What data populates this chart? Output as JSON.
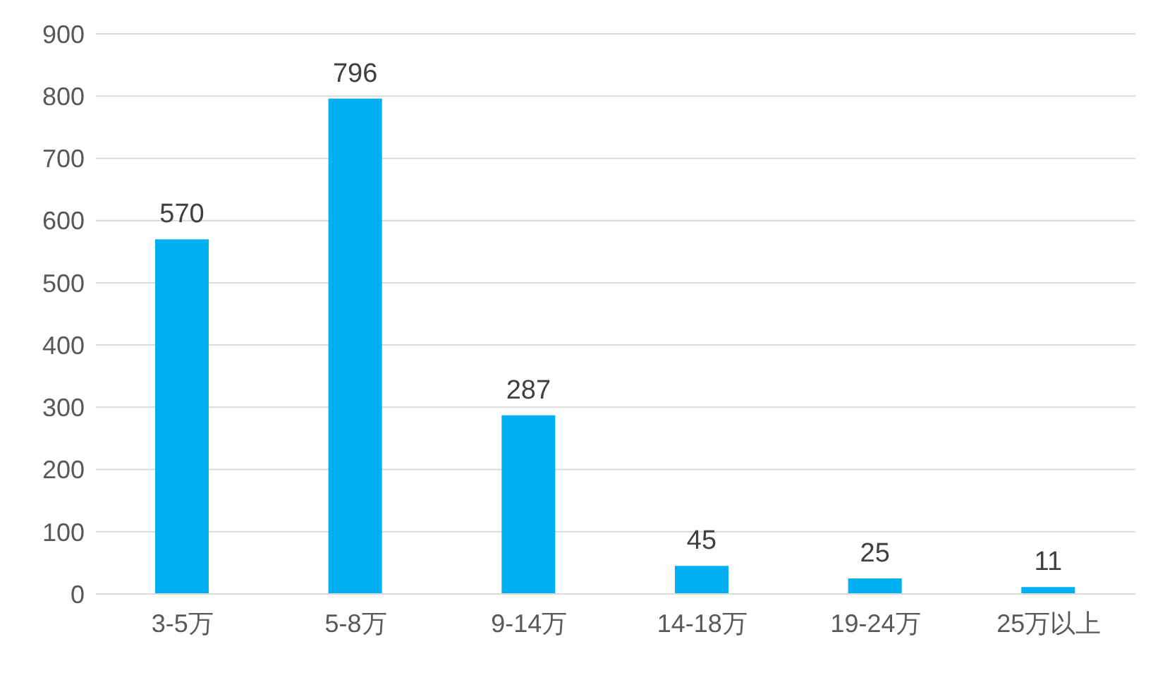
{
  "chart_data": {
    "type": "bar",
    "categories": [
      "3-5万",
      "5-8万",
      "9-14万",
      "14-18万",
      "19-24万",
      "25万以上"
    ],
    "values": [
      570,
      796,
      287,
      45,
      25,
      11
    ],
    "color": "#00b0f0",
    "ylim": [
      0,
      900
    ],
    "yticks": [
      0,
      100,
      200,
      300,
      400,
      500,
      600,
      700,
      800,
      900
    ],
    "grid": "y",
    "data_labels": true
  }
}
